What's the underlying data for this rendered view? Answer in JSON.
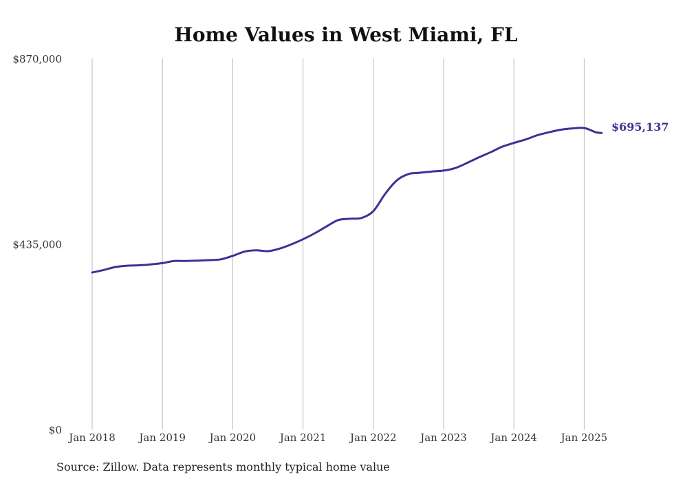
{
  "chart_data": {
    "type": "line",
    "title": "Home Values in West Miami, FL",
    "xlabel": "",
    "ylabel": "",
    "source": "Source: Zillow. Data represents monthly typical home value",
    "line_color": "#3a3393",
    "grid": "vertical",
    "ylim": [
      0,
      870000
    ],
    "yticks": [
      {
        "value": 0,
        "label": "$0"
      },
      {
        "value": 435000,
        "label": "$435,000"
      },
      {
        "value": 870000,
        "label": "$870,000"
      }
    ],
    "xticks": [
      {
        "value": "2018-01",
        "label": "Jan 2018"
      },
      {
        "value": "2019-01",
        "label": "Jan 2019"
      },
      {
        "value": "2020-01",
        "label": "Jan 2020"
      },
      {
        "value": "2021-01",
        "label": "Jan 2021"
      },
      {
        "value": "2022-01",
        "label": "Jan 2022"
      },
      {
        "value": "2023-01",
        "label": "Jan 2023"
      },
      {
        "value": "2024-01",
        "label": "Jan 2024"
      },
      {
        "value": "2025-01",
        "label": "Jan 2025"
      }
    ],
    "end_label": "$695,137",
    "series": [
      {
        "x": [
          "2018-01",
          "2018-03",
          "2018-05",
          "2018-07",
          "2018-09",
          "2018-11",
          "2019-01",
          "2019-03",
          "2019-05",
          "2019-07",
          "2019-09",
          "2019-11",
          "2020-01",
          "2020-03",
          "2020-05",
          "2020-07",
          "2020-09",
          "2020-11",
          "2021-01",
          "2021-03",
          "2021-05",
          "2021-07",
          "2021-09",
          "2021-11",
          "2022-01",
          "2022-03",
          "2022-05",
          "2022-07",
          "2022-09",
          "2022-11",
          "2023-01",
          "2023-03",
          "2023-05",
          "2023-07",
          "2023-09",
          "2023-11",
          "2024-01",
          "2024-03",
          "2024-05",
          "2024-07",
          "2024-09",
          "2024-11",
          "2025-01",
          "2025-03",
          "2025-04"
        ],
        "y": [
          368000,
          374000,
          381000,
          384000,
          385000,
          387000,
          390000,
          395000,
          395000,
          396000,
          397000,
          399000,
          407000,
          417000,
          420000,
          418000,
          424000,
          434000,
          446000,
          460000,
          476000,
          491000,
          494000,
          496000,
          512000,
          552000,
          584000,
          599000,
          602000,
          605000,
          607000,
          613000,
          625000,
          638000,
          650000,
          663000,
          672000,
          680000,
          690000,
          697000,
          703000,
          706000,
          707000,
          697000,
          695137
        ]
      }
    ]
  }
}
